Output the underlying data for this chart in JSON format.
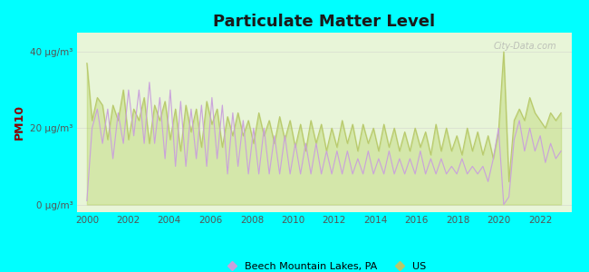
{
  "title": "Particulate Matter Level",
  "ylabel": "PM10",
  "ytick_labels": [
    "0 μg/m³",
    "20 μg/m³",
    "40 μg/m³"
  ],
  "ytick_vals": [
    0,
    20,
    40
  ],
  "ylim": [
    -2,
    45
  ],
  "xlim": [
    1999.5,
    2023.5
  ],
  "xtick_vals": [
    2000,
    2002,
    2004,
    2006,
    2008,
    2010,
    2012,
    2014,
    2016,
    2018,
    2020,
    2022
  ],
  "bg_color": "#00FFFF",
  "plot_bg": "#e8f5d8",
  "color_local": "#c9a0dc",
  "color_us": "#b8c86a",
  "legend_local": "Beech Mountain Lakes, PA",
  "legend_us": "US",
  "watermark": "City-Data.com",
  "ylabel_color": "#8B0000",
  "title_color": "#1a1a1a",
  "us_data": [
    37,
    22,
    28,
    26,
    17,
    26,
    22,
    30,
    17,
    25,
    22,
    28,
    16,
    26,
    22,
    27,
    17,
    25,
    14,
    26,
    19,
    25,
    15,
    27,
    21,
    25,
    15,
    23,
    18,
    24,
    18,
    22,
    16,
    24,
    18,
    22,
    16,
    23,
    17,
    22,
    15,
    21,
    14,
    22,
    16,
    21,
    14,
    20,
    15,
    22,
    16,
    21,
    14,
    21,
    16,
    20,
    14,
    21,
    15,
    20,
    14,
    19,
    14,
    20,
    15,
    19,
    13,
    21,
    14,
    20,
    14,
    18,
    13,
    20,
    14,
    19,
    13,
    18,
    12,
    19,
    40,
    6,
    22,
    25,
    22,
    28,
    24,
    22,
    20,
    24,
    22,
    24
  ],
  "local_data": [
    1,
    20,
    25,
    16,
    25,
    12,
    24,
    16,
    30,
    18,
    30,
    16,
    32,
    16,
    28,
    12,
    30,
    10,
    27,
    10,
    25,
    12,
    26,
    10,
    28,
    12,
    26,
    8,
    24,
    10,
    22,
    8,
    20,
    8,
    20,
    8,
    18,
    8,
    18,
    8,
    16,
    8,
    16,
    8,
    16,
    8,
    14,
    8,
    14,
    8,
    14,
    8,
    12,
    8,
    14,
    8,
    12,
    8,
    14,
    8,
    12,
    8,
    12,
    8,
    14,
    8,
    12,
    8,
    12,
    8,
    10,
    8,
    12,
    8,
    10,
    8,
    10,
    6,
    12,
    20,
    0,
    2,
    17,
    22,
    14,
    20,
    14,
    18,
    11,
    16,
    12,
    14
  ]
}
